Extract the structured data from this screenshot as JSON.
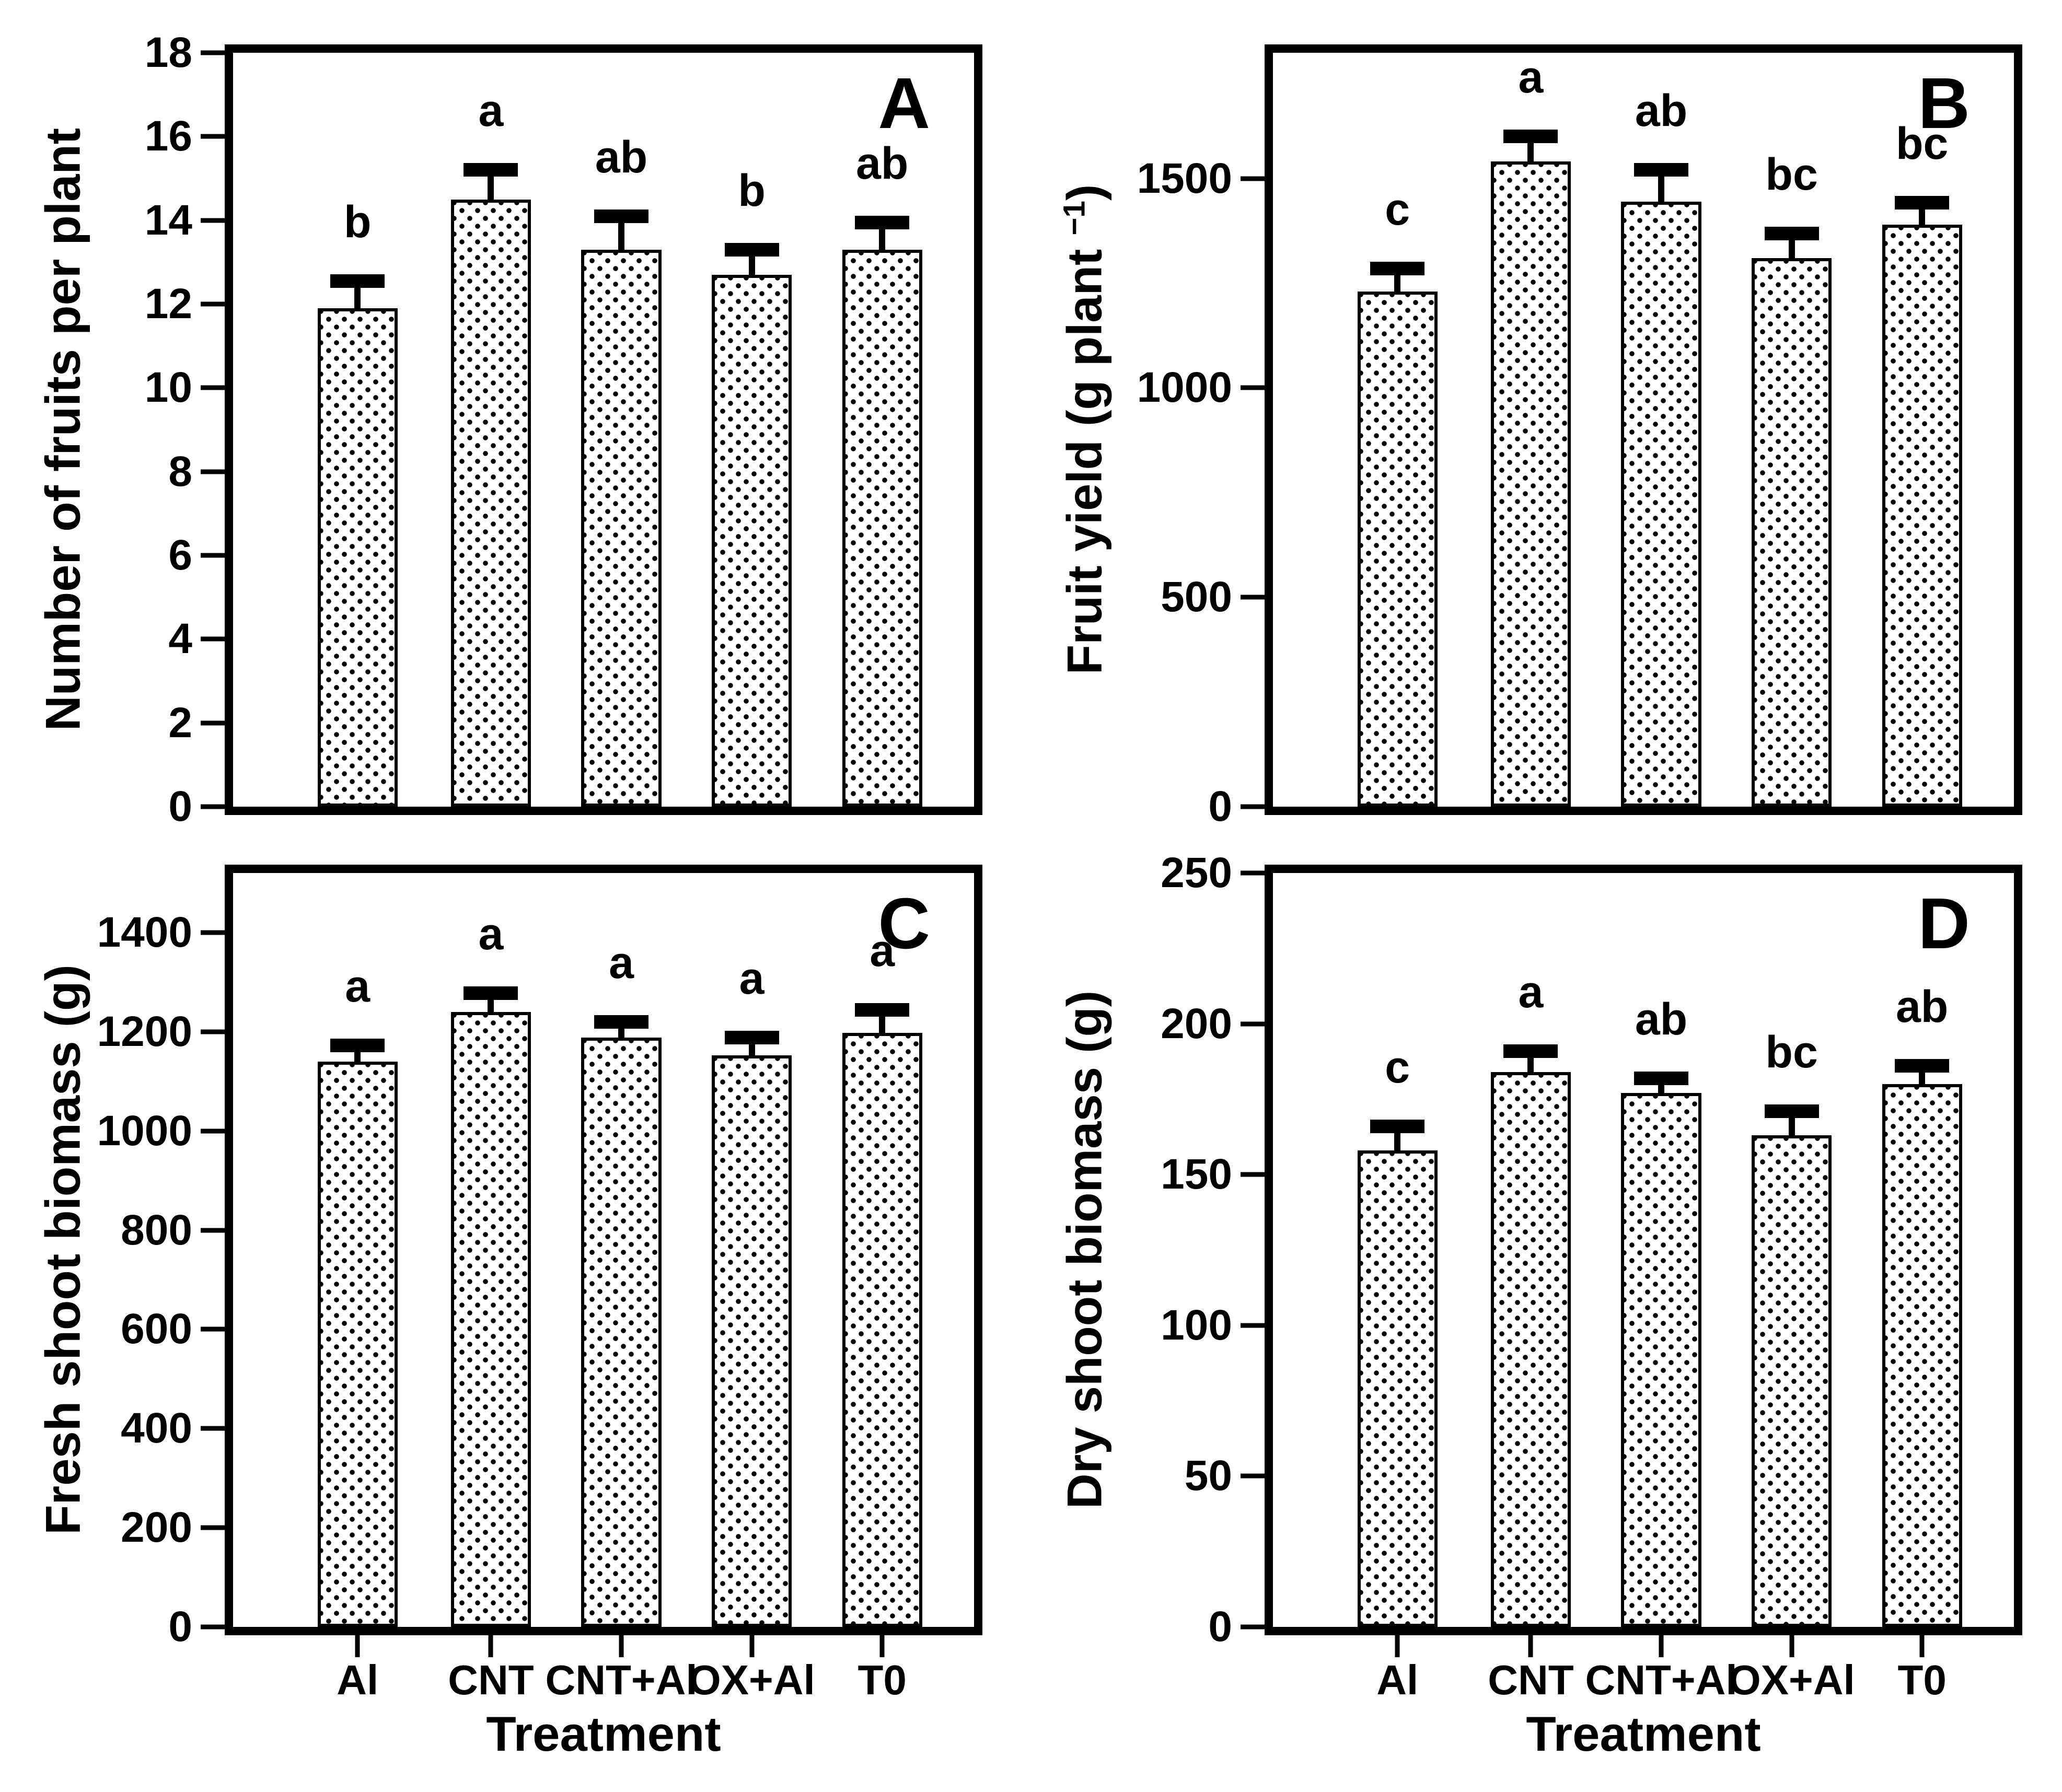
{
  "figure": {
    "xlabel": "Treatment",
    "colors": {
      "foreground": "#000000",
      "background": "#ffffff",
      "bar_fill": "#ffffff",
      "bar_pattern": "#000000"
    }
  },
  "chart_data": [
    {
      "panel": "A",
      "type": "bar",
      "title": "",
      "xlabel": "Treatment",
      "ylabel_prefix": "Number of fruits per plant",
      "ylabel_sup": "",
      "ylabel_suffix": "",
      "ylim": [
        0,
        18
      ],
      "yticks": [
        0,
        2,
        4,
        6,
        8,
        10,
        12,
        14,
        16,
        18
      ],
      "grid": false,
      "categories": [
        "Al",
        "CNT",
        "CNT+Al",
        "OX+Al",
        "T0"
      ],
      "values": [
        11.9,
        14.5,
        13.3,
        12.7,
        13.3
      ],
      "errors": [
        0.65,
        0.7,
        0.8,
        0.6,
        0.65
      ],
      "sig_letters": [
        "b",
        "a",
        "ab",
        "b",
        "ab"
      ],
      "show_x_labels": false
    },
    {
      "panel": "B",
      "type": "bar",
      "title": "",
      "xlabel": "Treatment",
      "ylabel_prefix": "Fruit yield (g plant ",
      "ylabel_sup": "−1",
      "ylabel_suffix": ")",
      "ylim": [
        0,
        1800
      ],
      "yticks": [
        0,
        500,
        1000,
        1500
      ],
      "grid": false,
      "categories": [
        "Al",
        "CNT",
        "CNT+Al",
        "OX+Al",
        "T0"
      ],
      "values": [
        1230,
        1540,
        1445,
        1310,
        1390
      ],
      "errors": [
        55,
        60,
        75,
        58,
        52
      ],
      "sig_letters": [
        "c",
        "a",
        "ab",
        "bc",
        "bc"
      ],
      "show_x_labels": false
    },
    {
      "panel": "C",
      "type": "bar",
      "title": "",
      "xlabel": "Treatment",
      "ylabel_prefix": "Fresh shoot biomass (g)",
      "ylabel_sup": "",
      "ylabel_suffix": "",
      "ylim": [
        0,
        1520
      ],
      "yticks": [
        0,
        200,
        400,
        600,
        800,
        1000,
        1200,
        1400
      ],
      "grid": false,
      "categories": [
        "Al",
        "CNT",
        "CNT+Al",
        "OX+Al",
        "T0"
      ],
      "values": [
        1140,
        1240,
        1188,
        1152,
        1198
      ],
      "errors": [
        32,
        38,
        32,
        36,
        46
      ],
      "sig_letters": [
        "a",
        "a",
        "a",
        "a",
        "a"
      ],
      "show_x_labels": true
    },
    {
      "panel": "D",
      "type": "bar",
      "title": "",
      "xlabel": "Treatment",
      "ylabel_prefix": "Dry shoot biomass (g)",
      "ylabel_sup": "",
      "ylabel_suffix": "",
      "ylim": [
        0,
        250
      ],
      "yticks": [
        0,
        50,
        100,
        150,
        200,
        250
      ],
      "grid": false,
      "categories": [
        "Al",
        "CNT",
        "CNT+Al",
        "OX+Al",
        "T0"
      ],
      "values": [
        158,
        184,
        177,
        163,
        180
      ],
      "errors": [
        8,
        7,
        5,
        8,
        6
      ],
      "sig_letters": [
        "c",
        "a",
        "ab",
        "bc",
        "ab"
      ],
      "show_x_labels": true
    }
  ]
}
